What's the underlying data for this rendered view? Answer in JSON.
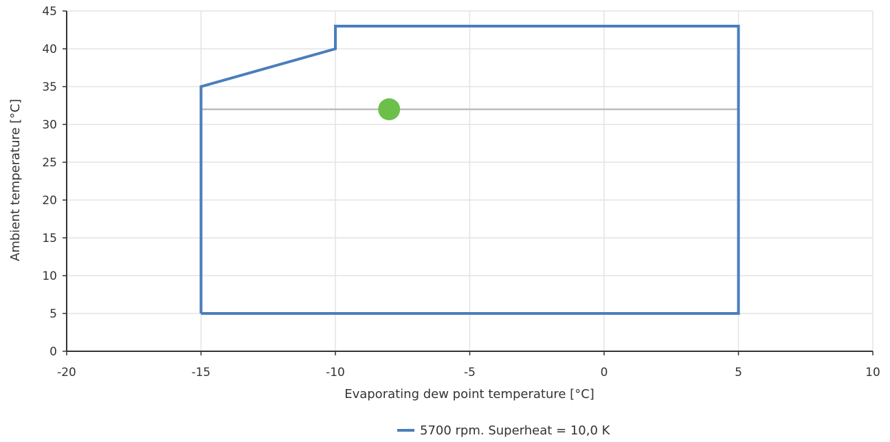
{
  "chart_data": {
    "type": "line",
    "title": "",
    "xlabel": "Evaporating dew point temperature [°C]",
    "ylabel": "Ambient temperature [°C]",
    "xlim": [
      -20,
      10
    ],
    "ylim": [
      0,
      45
    ],
    "x_ticks": [
      -20,
      -15,
      -10,
      -5,
      0,
      5,
      10
    ],
    "y_ticks": [
      0,
      5,
      10,
      15,
      20,
      25,
      30,
      35,
      40,
      45
    ],
    "x_tick_labels": [
      "-20",
      "-15",
      "-10",
      "-5",
      "0",
      "5",
      "10"
    ],
    "y_tick_labels": [
      "0",
      "5",
      "10",
      "15",
      "20",
      "25",
      "30",
      "35",
      "40",
      "45"
    ],
    "grid": true,
    "legend_position": "bottom-center",
    "series": [
      {
        "name": "5700 rpm. Superheat = 10,0 K",
        "color": "#4a7ebb",
        "points": [
          [
            -15,
            5
          ],
          [
            -15,
            35
          ],
          [
            -10,
            40
          ],
          [
            -10,
            43
          ],
          [
            5,
            43
          ],
          [
            5,
            5
          ],
          [
            -15,
            5
          ]
        ]
      }
    ],
    "reference_line": {
      "y": 32,
      "x_start": -15,
      "x_end": 5,
      "color": "#bbbbbb"
    },
    "operating_point": {
      "x": -8,
      "y": 32,
      "color": "#6cc04a"
    }
  }
}
